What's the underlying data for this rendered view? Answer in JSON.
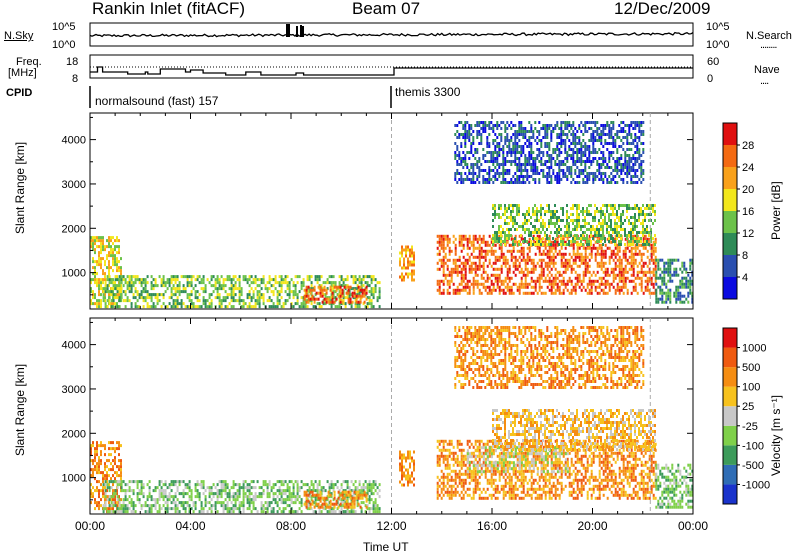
{
  "header": {
    "station": "Rankin Inlet (fitACF)",
    "beam": "Beam 07",
    "date": "12/Dec/2009"
  },
  "nsky_panel": {
    "left_label": "N.Sky",
    "left_ticks": [
      "10^5",
      "10^0"
    ],
    "right_ticks": [
      "10^5",
      "10^0"
    ],
    "right_label": "N.Search",
    "right_legend": "........"
  },
  "freq_panel": {
    "left_label_line1": "Freq.",
    "left_label_line2": "[MHz]",
    "left_ticks": [
      "18",
      "8"
    ],
    "right_ticks": [
      "60",
      "0"
    ],
    "right_label": "Nave",
    "right_legend": "...."
  },
  "cpid_panel": {
    "label": "CPID",
    "modes": [
      {
        "name": "normalsound (fast) 157",
        "start_hour": 0
      },
      {
        "name": "themis 3300",
        "start_hour": 12
      }
    ]
  },
  "chart_data": [
    {
      "type": "heatmap",
      "panel": "power",
      "ylabel": "Slant Range [km]",
      "yticks": [
        1000,
        2000,
        3000,
        4000
      ],
      "ylim": [
        180,
        4600
      ],
      "xlim_hours": [
        0,
        24
      ],
      "colorbar_label": "Power [dB]",
      "colorbar_ticks": [
        "4",
        "8",
        "12",
        "16",
        "20",
        "24",
        "28"
      ],
      "colorbar_colors": [
        "#0a0ae0",
        "#2a4fb0",
        "#2e8b57",
        "#6cc24a",
        "#f3e71c",
        "#f9a11b",
        "#f46a12",
        "#e01010"
      ],
      "regions": [
        {
          "start_hour": 0.0,
          "end_hour": 1.2,
          "range_min": 200,
          "range_max": 1800,
          "level": 4
        },
        {
          "start_hour": 0.5,
          "end_hour": 11.5,
          "range_min": 200,
          "range_max": 900,
          "level": 3
        },
        {
          "start_hour": 8.5,
          "end_hour": 11.0,
          "range_min": 300,
          "range_max": 700,
          "level": 6
        },
        {
          "start_hour": 12.3,
          "end_hour": 12.9,
          "range_min": 800,
          "range_max": 1600,
          "level": 5
        },
        {
          "start_hour": 13.8,
          "end_hour": 22.5,
          "range_min": 500,
          "range_max": 1800,
          "level": 6
        },
        {
          "start_hour": 16.0,
          "end_hour": 22.5,
          "range_min": 1600,
          "range_max": 2500,
          "level": 3
        },
        {
          "start_hour": 14.5,
          "end_hour": 22.0,
          "range_min": 3000,
          "range_max": 4400,
          "level": 1
        },
        {
          "start_hour": 22.5,
          "end_hour": 24.0,
          "range_min": 300,
          "range_max": 1300,
          "level": 2
        }
      ]
    },
    {
      "type": "heatmap",
      "panel": "velocity",
      "ylabel": "Slant Range [km]",
      "yticks": [
        1000,
        2000,
        3000,
        4000
      ],
      "ylim": [
        180,
        4600
      ],
      "xlim_hours": [
        0,
        24
      ],
      "xticks": [
        "00:00",
        "04:00",
        "08:00",
        "12:00",
        "16:00",
        "20:00",
        "00:00"
      ],
      "xlabel": "Time UT",
      "colorbar_label": "Velocity [m s⁻¹]",
      "colorbar_ticks": [
        "1000",
        "500",
        "100",
        "25",
        "-25",
        "-100",
        "-500",
        "-1000"
      ],
      "colorbar_colors": [
        "#1a33cc",
        "#2f6db5",
        "#3c9b5a",
        "#7fd04a",
        "#c8c8c8",
        "#f7c21e",
        "#f58d12",
        "#ef5a10",
        "#e01010"
      ],
      "regions": [
        {
          "start_hour": 0.0,
          "end_hour": 1.2,
          "range_min": 200,
          "range_max": 1800,
          "level": 6
        },
        {
          "start_hour": 0.5,
          "end_hour": 11.5,
          "range_min": 200,
          "range_max": 900,
          "level": 3
        },
        {
          "start_hour": 8.5,
          "end_hour": 11.0,
          "range_min": 300,
          "range_max": 700,
          "level": 6
        },
        {
          "start_hour": 12.3,
          "end_hour": 12.9,
          "range_min": 800,
          "range_max": 1600,
          "level": 6
        },
        {
          "start_hour": 13.8,
          "end_hour": 22.5,
          "range_min": 500,
          "range_max": 1800,
          "level": 6
        },
        {
          "start_hour": 15.0,
          "end_hour": 19.0,
          "range_min": 1100,
          "range_max": 1700,
          "level": 4
        },
        {
          "start_hour": 16.0,
          "end_hour": 22.5,
          "range_min": 1600,
          "range_max": 2500,
          "level": 5
        },
        {
          "start_hour": 14.5,
          "end_hour": 22.0,
          "range_min": 3000,
          "range_max": 4400,
          "level": 6
        },
        {
          "start_hour": 22.5,
          "end_hour": 24.0,
          "range_min": 300,
          "range_max": 1300,
          "level": 3
        }
      ]
    }
  ]
}
